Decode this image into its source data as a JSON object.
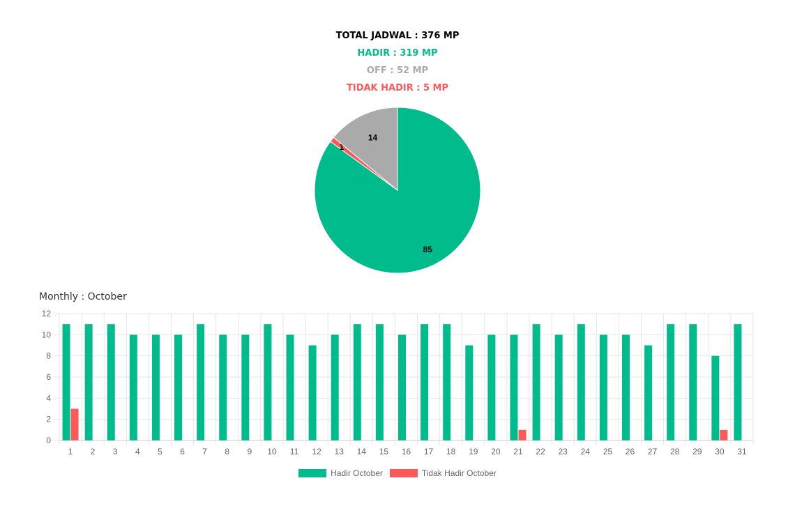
{
  "summary": {
    "total": "TOTAL JADWAL : 376 MP",
    "hadir": "HADIR : 319 MP",
    "off": "OFF : 52 MP",
    "tidak_hadir": "TIDAK HADIR : 5 MP"
  },
  "colors": {
    "total": "#000000",
    "hadir": "#00bc8c",
    "off": "#aaaaaa",
    "tidak_hadir": "#fa5a5a",
    "grid": "#e6e6e6",
    "axis_text": "#666666"
  },
  "monthly_title": "Monthly : October",
  "chart_data": [
    {
      "type": "pie",
      "slices": [
        {
          "label": "85",
          "value": 85,
          "color": "#00bc8c"
        },
        {
          "label": "1",
          "value": 1,
          "color": "#fa5a5a"
        },
        {
          "label": "14",
          "value": 14,
          "color": "#aaaaaa"
        }
      ]
    },
    {
      "type": "bar",
      "title": "Monthly : October",
      "categories": [
        "1",
        "2",
        "3",
        "4",
        "5",
        "6",
        "7",
        "8",
        "9",
        "10",
        "11",
        "12",
        "13",
        "14",
        "15",
        "16",
        "17",
        "18",
        "19",
        "20",
        "21",
        "22",
        "23",
        "24",
        "25",
        "26",
        "27",
        "28",
        "29",
        "30",
        "31"
      ],
      "series": [
        {
          "name": "Hadir October",
          "color": "#00bc8c",
          "values": [
            11,
            11,
            11,
            10,
            10,
            10,
            11,
            10,
            10,
            11,
            10,
            9,
            10,
            11,
            11,
            10,
            11,
            11,
            9,
            10,
            10,
            11,
            10,
            11,
            10,
            10,
            9,
            11,
            11,
            8,
            11
          ]
        },
        {
          "name": "Tidak Hadir October",
          "color": "#fa5a5a",
          "values": [
            3,
            0,
            0,
            0,
            0,
            0,
            0,
            0,
            0,
            0,
            0,
            0,
            0,
            0,
            0,
            0,
            0,
            0,
            0,
            0,
            1,
            0,
            0,
            0,
            0,
            0,
            0,
            0,
            0,
            1,
            0
          ]
        }
      ],
      "ylim": [
        0,
        12
      ],
      "yticks": [
        0,
        2,
        4,
        6,
        8,
        10,
        12
      ],
      "grid": true,
      "legend_position": "bottom"
    }
  ]
}
